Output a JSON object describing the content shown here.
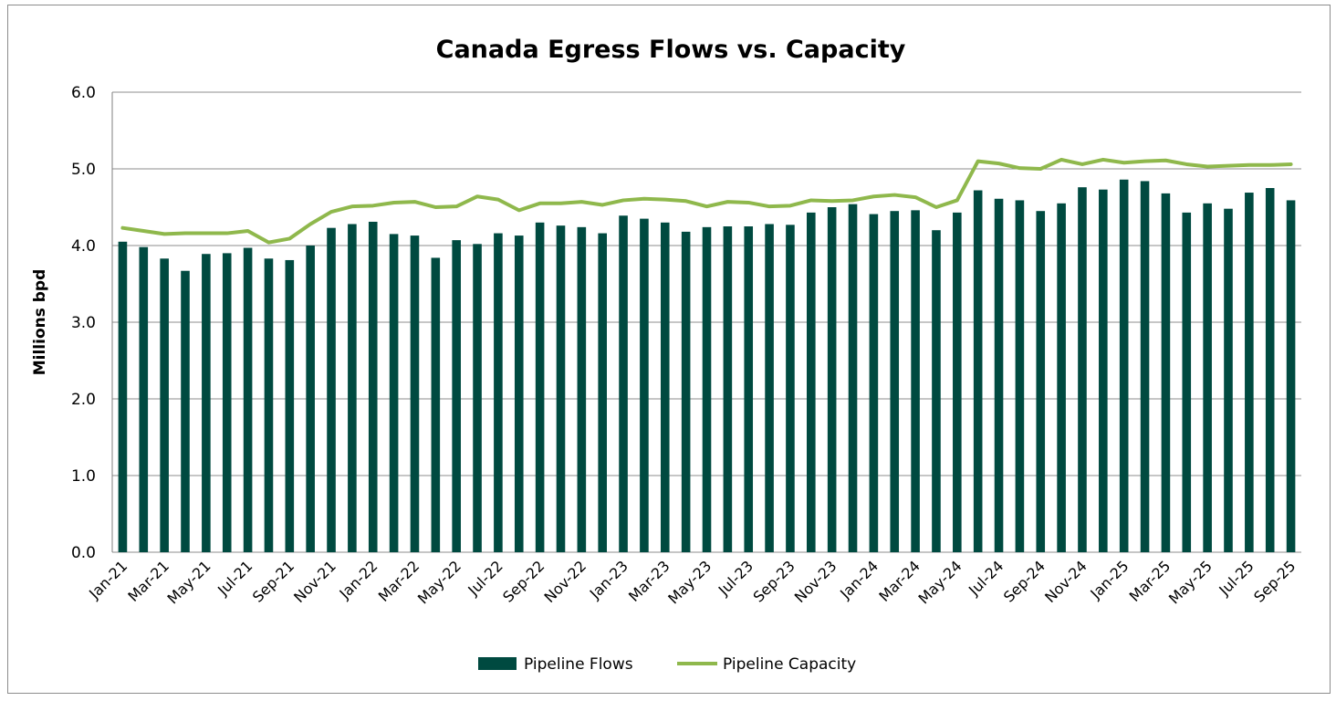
{
  "chart_data": {
    "type": "bar",
    "title": "Canada Egress Flows vs. Capacity",
    "xlabel": "",
    "ylabel": "Millions bpd",
    "ylim": [
      0,
      6
    ],
    "yticks": [
      "0.0",
      "1.0",
      "2.0",
      "3.0",
      "4.0",
      "5.0",
      "6.0"
    ],
    "grid": "horizontal",
    "legend_position": "bottom",
    "colors": {
      "flows": "#004a40",
      "capacity": "#8fb84c",
      "grid": "#8c8c8c",
      "axis": "#7f7f7f"
    },
    "categories": [
      "Jan-21",
      "Feb-21",
      "Mar-21",
      "Apr-21",
      "May-21",
      "Jun-21",
      "Jul-21",
      "Aug-21",
      "Sep-21",
      "Oct-21",
      "Nov-21",
      "Dec-21",
      "Jan-22",
      "Feb-22",
      "Mar-22",
      "Apr-22",
      "May-22",
      "Jun-22",
      "Jul-22",
      "Aug-22",
      "Sep-22",
      "Oct-22",
      "Nov-22",
      "Dec-22",
      "Jan-23",
      "Feb-23",
      "Mar-23",
      "Apr-23",
      "May-23",
      "Jun-23",
      "Jul-23",
      "Aug-23",
      "Sep-23",
      "Oct-23",
      "Nov-23",
      "Dec-23",
      "Jan-24",
      "Feb-24",
      "Mar-24",
      "Apr-24",
      "May-24",
      "Jun-24",
      "Jul-24",
      "Aug-24",
      "Sep-24",
      "Oct-24",
      "Nov-24",
      "Dec-24",
      "Jan-25",
      "Feb-25",
      "Mar-25",
      "Apr-25",
      "May-25",
      "Jun-25",
      "Jul-25",
      "Aug-25",
      "Sep-25"
    ],
    "x_tick_labels": [
      "Jan-21",
      "Mar-21",
      "May-21",
      "Jul-21",
      "Sep-21",
      "Nov-21",
      "Jan-22",
      "Mar-22",
      "May-22",
      "Jul-22",
      "Sep-22",
      "Nov-22",
      "Jan-23",
      "Mar-23",
      "May-23",
      "Jul-23",
      "Sep-23",
      "Nov-23",
      "Jan-24",
      "Mar-24",
      "May-24",
      "Jul-24",
      "Sep-24",
      "Nov-24",
      "Jan-25",
      "Mar-25",
      "May-25",
      "Jul-25",
      "Sep-25"
    ],
    "series": [
      {
        "name": "Pipeline Flows",
        "type": "bar",
        "values": [
          4.05,
          3.98,
          3.83,
          3.67,
          3.89,
          3.9,
          3.97,
          3.83,
          3.81,
          4.0,
          4.23,
          4.28,
          4.31,
          4.15,
          4.13,
          3.84,
          4.07,
          4.02,
          4.16,
          4.13,
          4.3,
          4.26,
          4.24,
          4.16,
          4.39,
          4.35,
          4.3,
          4.18,
          4.24,
          4.25,
          4.25,
          4.28,
          4.27,
          4.43,
          4.5,
          4.54,
          4.41,
          4.45,
          4.46,
          4.2,
          4.43,
          4.72,
          4.61,
          4.59,
          4.45,
          4.55,
          4.76,
          4.73,
          4.86,
          4.84,
          4.68,
          4.43,
          4.55,
          4.48,
          4.69,
          4.75,
          4.59
        ]
      },
      {
        "name": "Pipeline Capacity",
        "type": "line",
        "values": [
          4.23,
          4.19,
          4.15,
          4.16,
          4.16,
          4.16,
          4.19,
          4.04,
          4.09,
          4.28,
          4.44,
          4.51,
          4.52,
          4.56,
          4.57,
          4.5,
          4.51,
          4.64,
          4.6,
          4.46,
          4.55,
          4.55,
          4.57,
          4.53,
          4.59,
          4.61,
          4.6,
          4.58,
          4.51,
          4.57,
          4.56,
          4.51,
          4.52,
          4.59,
          4.58,
          4.59,
          4.64,
          4.66,
          4.63,
          4.5,
          4.59,
          5.1,
          5.07,
          5.01,
          5.0,
          5.12,
          5.06,
          5.12,
          5.08,
          5.1,
          5.11,
          5.06,
          5.03,
          5.04,
          5.05,
          5.05,
          5.06
        ]
      }
    ]
  }
}
